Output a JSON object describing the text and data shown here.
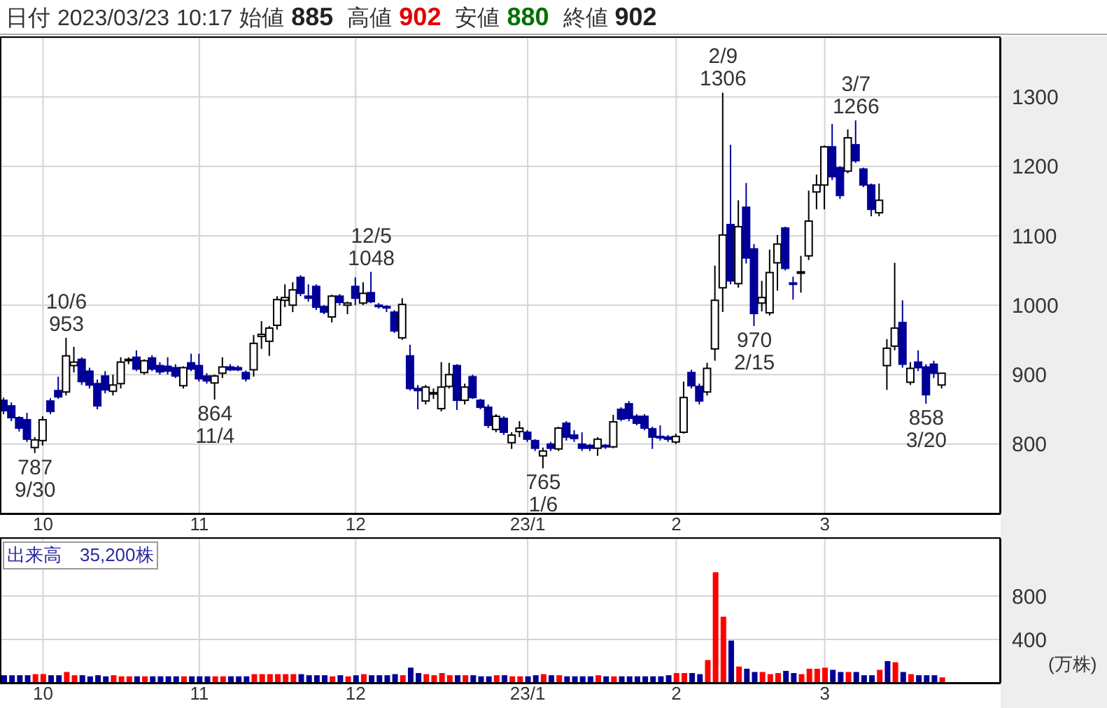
{
  "chart_data": [
    {
      "type": "candlestick",
      "title": "日付 2023/03/23 10:17 始値 885 高値 902 安値 880 終値 902",
      "categories": [
        null,
        null,
        null,
        null,
        null,
        "10",
        null,
        null,
        null,
        null,
        null,
        null,
        null,
        null,
        null,
        null,
        null,
        null,
        null,
        null,
        null,
        null,
        null,
        null,
        null,
        "11",
        null,
        null,
        null,
        null,
        null,
        null,
        null,
        null,
        null,
        null,
        null,
        null,
        null,
        null,
        null,
        null,
        null,
        null,
        null,
        "12",
        null,
        null,
        null,
        null,
        null,
        null,
        null,
        null,
        null,
        null,
        null,
        null,
        null,
        null,
        null,
        null,
        null,
        null,
        null,
        null,
        null,
        "23/1",
        null,
        null,
        null,
        null,
        null,
        null,
        null,
        null,
        null,
        null,
        null,
        null,
        null,
        null,
        null,
        null,
        null,
        null,
        "2",
        null,
        null,
        null,
        null,
        null,
        null,
        null,
        null,
        null,
        null,
        null,
        null,
        null,
        null,
        null,
        null,
        null,
        null,
        "3",
        null,
        null,
        null,
        null,
        null,
        null,
        null,
        null,
        null,
        null,
        null,
        null,
        null,
        null,
        null
      ],
      "ohlc": [
        [
          863,
          867,
          843,
          848
        ],
        [
          855,
          860,
          833,
          838
        ],
        [
          838,
          840,
          818,
          823
        ],
        [
          835,
          845,
          803,
          807
        ],
        [
          795,
          810,
          787,
          806
        ],
        [
          805,
          840,
          798,
          835
        ],
        [
          862,
          866,
          843,
          847
        ],
        [
          877,
          897,
          865,
          868
        ],
        [
          875,
          953,
          870,
          927
        ],
        [
          913,
          940,
          903,
          918
        ],
        [
          922,
          925,
          885,
          890
        ],
        [
          905,
          910,
          880,
          885
        ],
        [
          887,
          893,
          850,
          855
        ],
        [
          898,
          905,
          873,
          878
        ],
        [
          876,
          900,
          870,
          885
        ],
        [
          887,
          925,
          880,
          918
        ],
        [
          920,
          925,
          915,
          922
        ],
        [
          925,
          935,
          905,
          908
        ],
        [
          903,
          922,
          900,
          920
        ],
        [
          924,
          928,
          905,
          908
        ],
        [
          913,
          918,
          900,
          904
        ],
        [
          912,
          925,
          900,
          905
        ],
        [
          910,
          915,
          895,
          898
        ],
        [
          884,
          912,
          880,
          910
        ],
        [
          917,
          930,
          905,
          908
        ],
        [
          913,
          930,
          890,
          894
        ],
        [
          898,
          902,
          887,
          891
        ],
        [
          888,
          900,
          864,
          898
        ],
        [
          902,
          925,
          895,
          911
        ],
        [
          911,
          915,
          905,
          907
        ],
        [
          910,
          913,
          905,
          907
        ],
        [
          903,
          906,
          890,
          894
        ],
        [
          907,
          957,
          897,
          945
        ],
        [
          955,
          977,
          937,
          958
        ],
        [
          948,
          970,
          927,
          967
        ],
        [
          971,
          1013,
          965,
          1008
        ],
        [
          1007,
          1030,
          997,
          1011
        ],
        [
          1000,
          1033,
          990,
          1022
        ],
        [
          1040,
          1043,
          1013,
          1017
        ],
        [
          1013,
          1030,
          1005,
          1010
        ],
        [
          1027,
          1030,
          993,
          997
        ],
        [
          998,
          1000,
          987,
          990
        ],
        [
          983,
          1015,
          975,
          1013
        ],
        [
          1013,
          1016,
          1000,
          1004
        ],
        [
          1000,
          1005,
          987,
          1003
        ],
        [
          1027,
          1040,
          1000,
          1010
        ],
        [
          1003,
          1033,
          1000,
          1017
        ],
        [
          1018,
          1048,
          1003,
          1005
        ],
        [
          1000,
          1003,
          995,
          998
        ],
        [
          998,
          1000,
          990,
          996
        ],
        [
          990,
          993,
          960,
          963
        ],
        [
          953,
          1010,
          950,
          1001
        ],
        [
          927,
          943,
          877,
          880
        ],
        [
          880,
          885,
          850,
          877
        ],
        [
          862,
          885,
          857,
          882
        ],
        [
          872,
          880,
          865,
          874
        ],
        [
          851,
          918,
          847,
          882
        ],
        [
          883,
          917,
          880,
          900
        ],
        [
          913,
          915,
          849,
          863
        ],
        [
          863,
          887,
          857,
          882
        ],
        [
          897,
          900,
          865,
          867
        ],
        [
          863,
          865,
          850,
          853
        ],
        [
          853,
          857,
          823,
          827
        ],
        [
          821,
          843,
          817,
          840
        ],
        [
          837,
          840,
          813,
          817
        ],
        [
          802,
          817,
          793,
          813
        ],
        [
          818,
          833,
          810,
          823
        ],
        [
          817,
          820,
          803,
          807
        ],
        [
          805,
          807,
          790,
          794
        ],
        [
          783,
          795,
          765,
          790
        ],
        [
          800,
          803,
          790,
          794
        ],
        [
          793,
          825,
          790,
          823
        ],
        [
          830,
          833,
          805,
          810
        ],
        [
          813,
          820,
          803,
          808
        ],
        [
          800,
          817,
          790,
          794
        ],
        [
          798,
          800,
          790,
          794
        ],
        [
          794,
          810,
          783,
          807
        ],
        [
          798,
          800,
          793,
          796
        ],
        [
          796,
          842,
          794,
          832
        ],
        [
          850,
          853,
          833,
          836
        ],
        [
          858,
          862,
          833,
          837
        ],
        [
          840,
          843,
          827,
          830
        ],
        [
          840,
          843,
          820,
          823
        ],
        [
          822,
          825,
          793,
          810
        ],
        [
          811,
          827,
          805,
          810
        ],
        [
          810,
          813,
          803,
          807
        ],
        [
          803,
          815,
          800,
          811
        ],
        [
          817,
          890,
          815,
          867
        ],
        [
          903,
          907,
          880,
          884
        ],
        [
          883,
          887,
          857,
          862
        ],
        [
          875,
          917,
          870,
          909
        ],
        [
          937,
          1057,
          920,
          1007
        ],
        [
          1025,
          1306,
          990,
          1101
        ],
        [
          1116,
          1231,
          1030,
          1035
        ],
        [
          1031,
          1151,
          1025,
          1113
        ],
        [
          1141,
          1176,
          1060,
          1068
        ],
        [
          1081,
          1088,
          970,
          988
        ],
        [
          1003,
          1035,
          991,
          1011
        ],
        [
          989,
          1080,
          985,
          1047
        ],
        [
          1061,
          1101,
          1021,
          1088
        ],
        [
          1111,
          1113,
          1050,
          1053
        ],
        [
          1032,
          1041,
          1008,
          1030
        ],
        [
          1046,
          1071,
          1018,
          1048
        ],
        [
          1071,
          1165,
          1065,
          1121
        ],
        [
          1163,
          1188,
          1138,
          1173
        ],
        [
          1173,
          1230,
          1138,
          1228
        ],
        [
          1228,
          1261,
          1180,
          1185
        ],
        [
          1198,
          1200,
          1153,
          1158
        ],
        [
          1193,
          1253,
          1190,
          1241
        ],
        [
          1231,
          1266,
          1205,
          1208
        ],
        [
          1196,
          1198,
          1170,
          1173
        ],
        [
          1173,
          1175,
          1128,
          1138
        ],
        [
          1133,
          1175,
          1128,
          1151
        ],
        [
          913,
          951,
          878,
          938
        ],
        [
          941,
          1061,
          935,
          967
        ],
        [
          975,
          1007,
          910,
          915
        ],
        [
          889,
          918,
          885,
          909
        ],
        [
          918,
          935,
          905,
          910
        ],
        [
          911,
          915,
          858,
          871
        ],
        [
          915,
          920,
          895,
          902
        ],
        [
          885,
          902,
          880,
          902
        ]
      ],
      "colors": [
        "#000099",
        "#000099",
        "#000099",
        "#000099",
        "#ffffff",
        "#ffffff",
        "#000099",
        "#000099",
        "#ffffff",
        "#ffffff",
        "#000099",
        "#000099",
        "#000099",
        "#000099",
        "#ffffff",
        "#ffffff",
        "#ffffff",
        "#000099",
        "#ffffff",
        "#000099",
        "#000099",
        "#000099",
        "#000099",
        "#ffffff",
        "#000099",
        "#000099",
        "#000099",
        "#ffffff",
        "#ffffff",
        "#000099",
        "#000099",
        "#000099",
        "#ffffff",
        "#ffffff",
        "#ffffff",
        "#ffffff",
        "#ffffff",
        "#ffffff",
        "#000099",
        "#000099",
        "#000099",
        "#000099",
        "#ffffff",
        "#000099",
        "#ffffff",
        "#000099",
        "#ffffff",
        "#000099",
        "#000099",
        "#000099",
        "#000099",
        "#ffffff",
        "#000099",
        "#000099",
        "#ffffff",
        "#ffffff",
        "#ffffff",
        "#ffffff",
        "#000099",
        "#ffffff",
        "#000099",
        "#000099",
        "#000099",
        "#ffffff",
        "#000099",
        "#ffffff",
        "#ffffff",
        "#000099",
        "#000099",
        "#ffffff",
        "#000099",
        "#ffffff",
        "#000099",
        "#000099",
        "#000099",
        "#000099",
        "#ffffff",
        "#000099",
        "#ffffff",
        "#000099",
        "#000099",
        "#000099",
        "#000099",
        "#000099",
        "#000099",
        "#000099",
        "#ffffff",
        "#ffffff",
        "#000099",
        "#000099",
        "#ffffff",
        "#ffffff",
        "#ffffff",
        "#000099",
        "#ffffff",
        "#000099",
        "#000099",
        "#ffffff",
        "#ffffff",
        "#ffffff",
        "#000099",
        "#000099",
        "#ffffff",
        "#ffffff",
        "#ffffff",
        "#ffffff",
        "#000099",
        "#000099",
        "#ffffff",
        "#000099",
        "#000099",
        "#000099",
        "#ffffff",
        "#ffffff",
        "#ffffff",
        "#000099",
        "#ffffff",
        "#000099",
        "#000099",
        "#000099",
        "#ffffff"
      ],
      "ylim": [
        700,
        1385
      ],
      "yticks": [
        800,
        900,
        1000,
        1100,
        1200,
        1300
      ],
      "grid": true,
      "annotations": [
        {
          "text": "787\n9/30",
          "y": 787
        },
        {
          "text": "10/6\n953",
          "y": 953
        },
        {
          "text": "864\n11/4",
          "y": 864
        },
        {
          "text": "12/5\n1048",
          "y": 1048
        },
        {
          "text": "765\n1/6",
          "y": 765
        },
        {
          "text": "2/9\n1306",
          "y": 1306
        },
        {
          "text": "970\n2/15",
          "y": 970
        },
        {
          "text": "3/7\n1266",
          "y": 1266
        },
        {
          "text": "858\n3/20",
          "y": 858
        }
      ]
    },
    {
      "type": "bar",
      "title": "出来高　35,200株",
      "ylabel": "(万株)",
      "categories": [
        null,
        null,
        null,
        null,
        null,
        "10",
        null,
        null,
        null,
        null,
        null,
        null,
        null,
        null,
        null,
        null,
        null,
        null,
        null,
        null,
        null,
        null,
        null,
        null,
        null,
        "11",
        null,
        null,
        null,
        null,
        null,
        null,
        null,
        null,
        null,
        null,
        null,
        null,
        null,
        null,
        null,
        null,
        null,
        null,
        null,
        "12",
        null,
        null,
        null,
        null,
        null,
        null,
        null,
        null,
        null,
        null,
        null,
        null,
        null,
        null,
        null,
        null,
        null,
        null,
        null,
        null,
        null,
        "23/1",
        null,
        null,
        null,
        null,
        null,
        null,
        null,
        null,
        null,
        null,
        null,
        null,
        null,
        null,
        null,
        null,
        null,
        null,
        "2",
        null,
        null,
        null,
        null,
        null,
        null,
        null,
        null,
        null,
        null,
        null,
        null,
        null,
        null,
        null,
        null,
        null,
        null,
        "3",
        null,
        null,
        null,
        null,
        null,
        null,
        null,
        null,
        null,
        null,
        null,
        null,
        null,
        null,
        null
      ],
      "values": [
        70,
        70,
        70,
        70,
        80,
        80,
        70,
        70,
        100,
        70,
        70,
        60,
        70,
        60,
        70,
        60,
        60,
        60,
        60,
        60,
        60,
        60,
        60,
        60,
        60,
        60,
        60,
        60,
        60,
        60,
        60,
        60,
        80,
        80,
        80,
        80,
        80,
        80,
        80,
        70,
        70,
        70,
        60,
        70,
        60,
        70,
        80,
        70,
        70,
        70,
        80,
        70,
        140,
        90,
        80,
        70,
        90,
        70,
        70,
        70,
        70,
        60,
        60,
        70,
        70,
        60,
        60,
        60,
        70,
        80,
        70,
        70,
        60,
        60,
        60,
        60,
        70,
        60,
        60,
        60,
        60,
        60,
        60,
        60,
        60,
        70,
        90,
        90,
        90,
        80,
        210,
        1020,
        610,
        390,
        150,
        130,
        100,
        100,
        80,
        90,
        110,
        90,
        80,
        130,
        130,
        140,
        120,
        100,
        100,
        100,
        70,
        70,
        120,
        200,
        190,
        100,
        80,
        70,
        70,
        70,
        50
      ],
      "colors": [
        "#000099",
        "#000099",
        "#000099",
        "#000099",
        "#ff0000",
        "#ff0000",
        "#000099",
        "#000099",
        "#ff0000",
        "#ff0000",
        "#000099",
        "#000099",
        "#000099",
        "#000099",
        "#ff0000",
        "#ff0000",
        "#ff0000",
        "#000099",
        "#ff0000",
        "#000099",
        "#000099",
        "#000099",
        "#000099",
        "#ff0000",
        "#000099",
        "#000099",
        "#000099",
        "#ff0000",
        "#ff0000",
        "#000099",
        "#000099",
        "#000099",
        "#ff0000",
        "#ff0000",
        "#ff0000",
        "#ff0000",
        "#ff0000",
        "#ff0000",
        "#000099",
        "#000099",
        "#000099",
        "#000099",
        "#ff0000",
        "#000099",
        "#ff0000",
        "#000099",
        "#ff0000",
        "#000099",
        "#000099",
        "#000099",
        "#000099",
        "#ff0000",
        "#000099",
        "#000099",
        "#ff0000",
        "#ff0000",
        "#ff0000",
        "#ff0000",
        "#000099",
        "#ff0000",
        "#000099",
        "#000099",
        "#000099",
        "#ff0000",
        "#000099",
        "#ff0000",
        "#ff0000",
        "#000099",
        "#000099",
        "#ff0000",
        "#000099",
        "#ff0000",
        "#000099",
        "#000099",
        "#000099",
        "#000099",
        "#ff0000",
        "#000099",
        "#ff0000",
        "#000099",
        "#000099",
        "#000099",
        "#000099",
        "#000099",
        "#000099",
        "#000099",
        "#ff0000",
        "#ff0000",
        "#000099",
        "#000099",
        "#ff0000",
        "#ff0000",
        "#ff0000",
        "#000099",
        "#ff0000",
        "#000099",
        "#000099",
        "#ff0000",
        "#ff0000",
        "#ff0000",
        "#000099",
        "#000099",
        "#ff0000",
        "#ff0000",
        "#ff0000",
        "#ff0000",
        "#000099",
        "#000099",
        "#ff0000",
        "#000099",
        "#000099",
        "#000099",
        "#ff0000",
        "#000099",
        "#ff0000",
        "#000099",
        "#ff0000",
        "#000099",
        "#000099",
        "#000099",
        "#ff0000"
      ],
      "ylim": [
        0,
        1330
      ],
      "yticks": [
        400,
        800
      ],
      "grid": true
    }
  ]
}
